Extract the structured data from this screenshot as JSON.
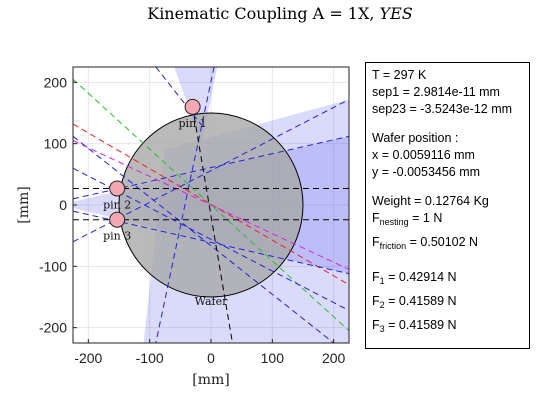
{
  "title": {
    "prefix": "Kinematic Coupling A = 1X, ",
    "suffix": "YES"
  },
  "chart_data": {
    "type": "scatter",
    "title": "Kinematic Coupling A = 1X, YES",
    "xlabel": "[mm]",
    "ylabel": "[mm]",
    "xlim": [
      -225,
      225
    ],
    "ylim": [
      -225,
      225
    ],
    "xticks": [
      -200,
      -100,
      0,
      100,
      200
    ],
    "yticks": [
      -200,
      -100,
      0,
      100,
      200
    ],
    "xtick_labels": [
      "-200",
      "-100",
      "0",
      "100",
      "200"
    ],
    "ytick_labels": [
      "-200",
      "-100",
      "0",
      "100",
      "200"
    ],
    "grid": true,
    "wafer": {
      "label": "Wafer",
      "center": [
        0,
        0
      ],
      "radius": 150
    },
    "pins": [
      {
        "label": "pin 1",
        "x": -30,
        "y": 160
      },
      {
        "label": "pin 2",
        "x": -153,
        "y": 27
      },
      {
        "label": "pin 3",
        "x": -153,
        "y": -24
      }
    ],
    "lines": [
      {
        "color": "#22c22e",
        "style": "dash",
        "from": [
          -225,
          205
        ],
        "to": [
          225,
          -205
        ]
      },
      {
        "color": "#ee2222",
        "style": "dash",
        "from": [
          -225,
          132
        ],
        "to": [
          225,
          -130
        ]
      },
      {
        "color": "#dd22dd",
        "style": "dash",
        "from": [
          -225,
          105
        ],
        "to": [
          225,
          -105
        ]
      },
      {
        "color": "#2222dd",
        "style": "dash",
        "from": [
          -90,
          225
        ],
        "to": [
          -15,
          130
        ]
      },
      {
        "color": "#2222dd",
        "style": "dash",
        "from": [
          5,
          225
        ],
        "to": [
          -90,
          -225
        ]
      },
      {
        "color": "#2222dd",
        "style": "dash",
        "from": [
          -225,
          -60
        ],
        "to": [
          225,
          172
        ]
      },
      {
        "color": "#2222dd",
        "style": "dash",
        "from": [
          -225,
          60
        ],
        "to": [
          225,
          -172
        ]
      },
      {
        "color": "#2222dd",
        "style": "dash",
        "from": [
          -225,
          10
        ],
        "to": [
          225,
          112
        ]
      },
      {
        "color": "#2222dd",
        "style": "dash",
        "from": [
          -225,
          -10
        ],
        "to": [
          225,
          -112
        ]
      },
      {
        "color": "#2222dd",
        "style": "dash",
        "from": [
          -225,
          112
        ],
        "to": [
          200,
          -225
        ]
      },
      {
        "color": "#000000",
        "style": "dash",
        "from": [
          -225,
          27
        ],
        "to": [
          225,
          27
        ]
      },
      {
        "color": "#000000",
        "style": "dash",
        "from": [
          -225,
          -24
        ],
        "to": [
          225,
          -24
        ]
      },
      {
        "color": "#000000",
        "style": "dash",
        "from": [
          -30,
          160
        ],
        "to": [
          35,
          -225
        ]
      }
    ],
    "regions": [
      {
        "color": "#5555ee",
        "opacity": 0.22,
        "points": [
          [
            -60,
            225
          ],
          [
            10,
            225
          ],
          [
            -15,
            100
          ]
        ]
      },
      {
        "color": "#5555ee",
        "opacity": 0.22,
        "points": [
          [
            -75,
            90
          ],
          [
            225,
            172
          ],
          [
            225,
            -225
          ],
          [
            -110,
            -225
          ]
        ]
      },
      {
        "color": "#5555ee",
        "opacity": 0.22,
        "points": [
          [
            -225,
            5
          ],
          [
            225,
            112
          ],
          [
            225,
            -112
          ],
          [
            -225,
            -5
          ]
        ]
      }
    ]
  },
  "info": {
    "temperature": "T = 297 K",
    "sep1": "sep1 = 2.9814e-11 mm",
    "sep23": "sep23 = -3.5243e-12 mm",
    "wafer_position_label": "Wafer position :",
    "x": "x = 0.0059116 mm",
    "y": "y = -0.0053456 mm",
    "weight": "Weight = 0.12764 Kg",
    "f_nesting_prefix": "F",
    "f_nesting_sub": "nesting",
    "f_nesting_value": " = 1 N",
    "f_friction_prefix": "F",
    "f_friction_sub": "friction",
    "f_friction_value": " = 0.50102 N",
    "f1_prefix": "F",
    "f1_sub": "1",
    "f1_value": " = 0.42914 N",
    "f2_prefix": "F",
    "f2_sub": "2",
    "f2_value": " = 0.41589 N",
    "f3_prefix": "F",
    "f3_sub": "3",
    "f3_value": " = 0.41589 N"
  }
}
